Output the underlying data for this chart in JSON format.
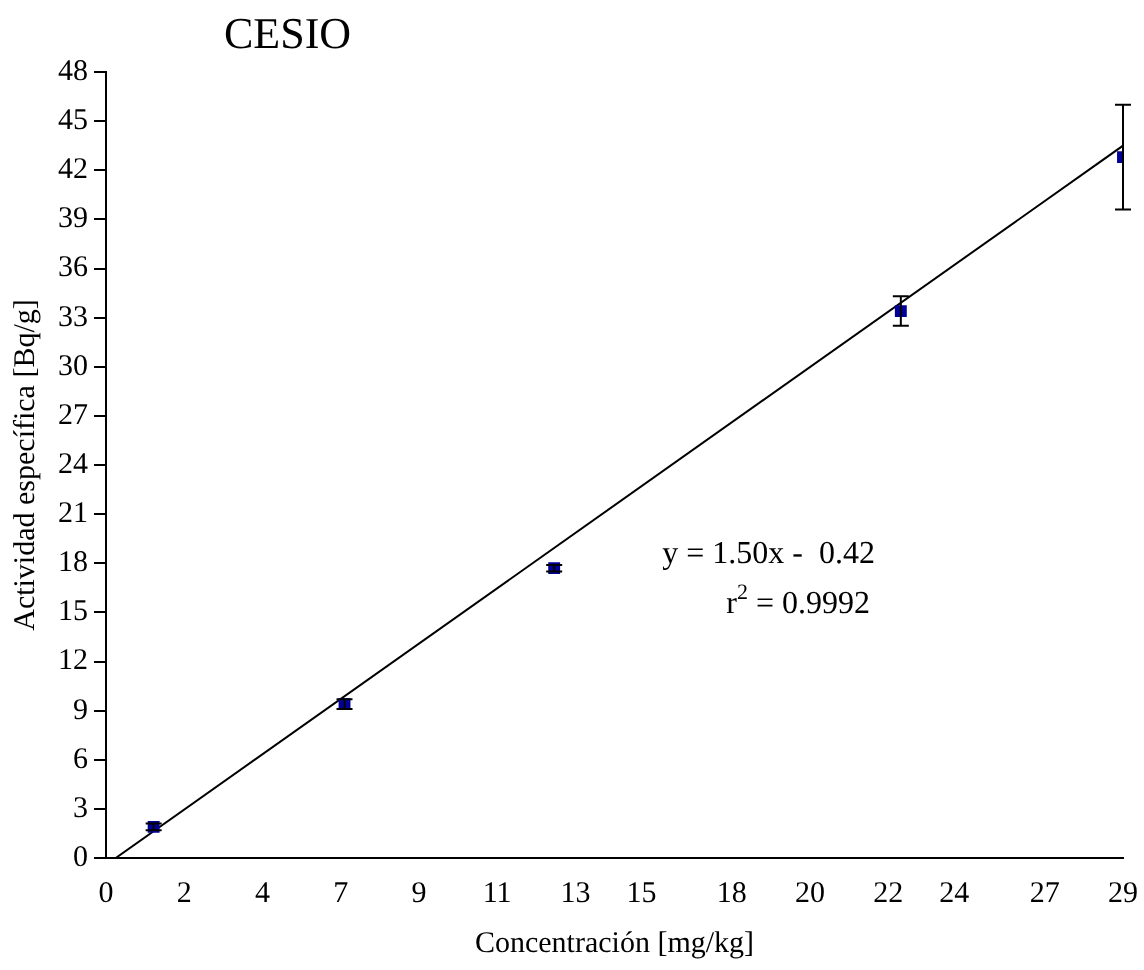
{
  "chart_data": {
    "type": "scatter",
    "title": "CESIO",
    "xlabel": "Concentración [mg/kg]",
    "ylabel": "Actividad específica [Bq/g]",
    "xlim": [
      0,
      29.25
    ],
    "xticks": [
      0,
      {
        "value": 2.25,
        "label": "2"
      },
      {
        "value": 4.5,
        "label": "4"
      },
      {
        "value": 6.75,
        "label": "7"
      },
      9,
      {
        "value": 11.25,
        "label": "11"
      },
      {
        "value": 13.5,
        "label": "13"
      },
      {
        "value": 15.4,
        "label": "15"
      },
      18,
      {
        "value": 20.25,
        "label": "20"
      },
      {
        "value": 22.5,
        "label": "22"
      },
      {
        "value": 24.4,
        "label": "24"
      },
      27,
      {
        "value": 29.25,
        "label": "29"
      }
    ],
    "ylim": [
      0,
      48
    ],
    "yticks": [
      0,
      3,
      6,
      9,
      12,
      15,
      18,
      21,
      24,
      27,
      30,
      33,
      36,
      39,
      42,
      45,
      48
    ],
    "grid": false,
    "legend": false,
    "marker": "square",
    "series": [
      {
        "color": "#000099",
        "x": [
          1.37,
          6.86,
          12.89,
          22.86,
          29.25
        ],
        "values": [
          1.9,
          9.4,
          17.7,
          33.4,
          42.8
        ],
        "errors": [
          0.2,
          0.3,
          0.2,
          0.9,
          3.2
        ]
      },
      {
        "type": "line",
        "color": "#000000",
        "x": [
          0.28,
          29.25
        ],
        "values": [
          0,
          43.5
        ],
        "marker": "none"
      }
    ],
    "annotations": [
      "y = 1.50x -  0.42",
      "r$^{2}$ = 0.9992"
    ]
  }
}
